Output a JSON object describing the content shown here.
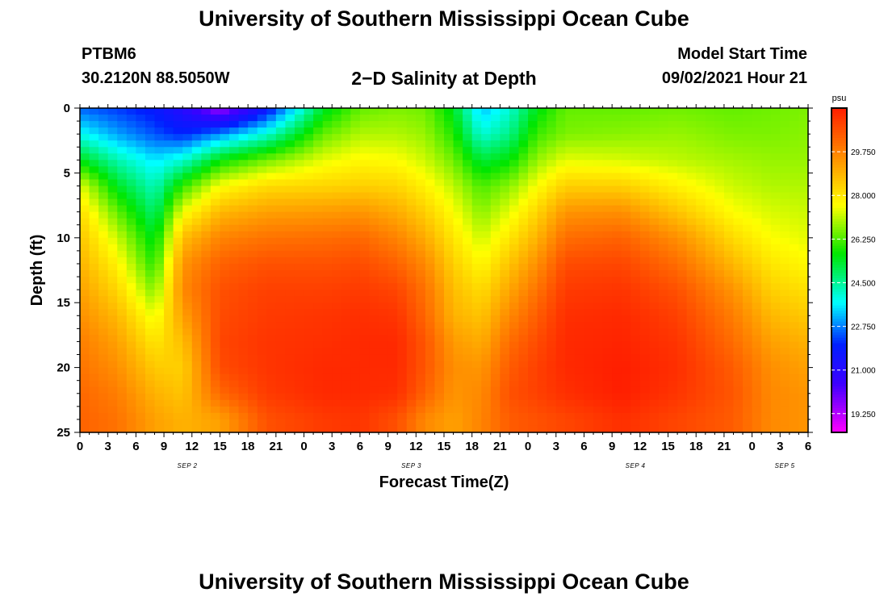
{
  "header": {
    "title": "University of Southern Mississippi Ocean Cube",
    "station": "PTBM6",
    "coords": "30.2120N  88.5050W",
    "plot_title": "2−D Salinity at Depth",
    "model_start_label": "Model Start Time",
    "model_start_value": "09/02/2021 Hour 21"
  },
  "footer": {
    "title": "University of Southern Mississippi Ocean Cube"
  },
  "chart_data": {
    "type": "heatmap",
    "title": "2−D Salinity at Depth",
    "xlabel": "Forecast Time(Z)",
    "ylabel": "Depth (ft)",
    "x_start_hour": 0,
    "x_end_hour": 78,
    "xlim": [
      0,
      78
    ],
    "ylim": [
      0,
      25
    ],
    "x_tick_labels": [
      "0",
      "3",
      "6",
      "9",
      "12",
      "15",
      "18",
      "21",
      "0",
      "3",
      "6",
      "9",
      "12",
      "15",
      "18",
      "21",
      "0",
      "3",
      "6",
      "9",
      "12",
      "15",
      "18",
      "21",
      "0",
      "3",
      "6"
    ],
    "date_labels": [
      {
        "label": "SEP 2",
        "hour": 11.5
      },
      {
        "label": "SEP 3",
        "hour": 35.5
      },
      {
        "label": "SEP 4",
        "hour": 59.5
      },
      {
        "label": "SEP 5",
        "hour": 75.5
      }
    ],
    "y_ticks": [
      0,
      5,
      10,
      15,
      20,
      25
    ],
    "colorbar": {
      "unit": "psu",
      "min": 18.5,
      "max": 31.5,
      "labels": [
        "29.750",
        "28.000",
        "26.250",
        "24.500",
        "22.750",
        "21.000",
        "19.250"
      ]
    },
    "salinity_profile": {
      "description": "columns of salinity (psu) at depths 0,2,4,6,8,10,12,14,16,18,20,22,24 ft",
      "depths": [
        0,
        2,
        4,
        6,
        8,
        10,
        12,
        14,
        16,
        18,
        20,
        22,
        24
      ],
      "columns": [
        {
          "hour": 0,
          "values": [
            22.5,
            23.8,
            25.5,
            27.4,
            28.2,
            28.6,
            28.9,
            29.2,
            29.5,
            29.8,
            30.0,
            30.2,
            30.3
          ]
        },
        {
          "hour": 4,
          "values": [
            22.2,
            23.0,
            24.3,
            25.4,
            26.4,
            27.2,
            27.8,
            28.3,
            28.8,
            29.2,
            29.5,
            29.8,
            30.0
          ]
        },
        {
          "hour": 8,
          "values": [
            21.8,
            22.4,
            23.5,
            24.2,
            24.8,
            25.4,
            25.9,
            26.6,
            27.4,
            28.0,
            28.5,
            28.9,
            29.2
          ]
        },
        {
          "hour": 11,
          "values": [
            21.0,
            22.0,
            24.0,
            26.0,
            27.5,
            28.7,
            29.4,
            29.6,
            29.2,
            28.7,
            28.4,
            28.6,
            28.9
          ]
        },
        {
          "hour": 15,
          "values": [
            19.3,
            22.8,
            25.6,
            27.6,
            28.8,
            29.7,
            30.3,
            30.6,
            30.7,
            30.8,
            30.7,
            30.2,
            29.2
          ]
        },
        {
          "hour": 20,
          "values": [
            21.6,
            24.0,
            26.5,
            28.2,
            29.2,
            30.0,
            30.6,
            30.9,
            31.0,
            31.1,
            31.1,
            31.0,
            30.6
          ]
        },
        {
          "hour": 26,
          "values": [
            25.3,
            26.4,
            27.4,
            28.3,
            29.3,
            30.1,
            30.6,
            30.9,
            31.1,
            31.2,
            31.3,
            31.3,
            31.0
          ]
        },
        {
          "hour": 30,
          "values": [
            26.4,
            27.0,
            27.7,
            28.4,
            29.4,
            30.2,
            30.7,
            31.0,
            31.2,
            31.3,
            31.3,
            31.3,
            31.1
          ]
        },
        {
          "hour": 34,
          "values": [
            26.6,
            27.0,
            27.6,
            28.3,
            29.0,
            29.7,
            30.3,
            30.8,
            31.1,
            31.3,
            31.3,
            31.2,
            30.6
          ]
        },
        {
          "hour": 37,
          "values": [
            26.5,
            26.8,
            27.2,
            27.8,
            28.4,
            29.0,
            29.6,
            30.0,
            30.2,
            30.5,
            30.5,
            30.3,
            29.6
          ]
        },
        {
          "hour": 40,
          "values": [
            25.4,
            25.9,
            26.5,
            27.1,
            27.6,
            28.0,
            28.4,
            28.7,
            28.9,
            29.3,
            29.5,
            29.4,
            29.2
          ]
        },
        {
          "hour": 43,
          "values": [
            23.2,
            24.0,
            25.2,
            26.2,
            26.7,
            27.2,
            27.7,
            28.2,
            28.6,
            29.0,
            29.4,
            29.6,
            29.7
          ]
        },
        {
          "hour": 46,
          "values": [
            24.0,
            24.6,
            25.6,
            26.7,
            27.4,
            28.0,
            28.6,
            29.1,
            29.6,
            30.1,
            30.4,
            30.6,
            30.4
          ]
        },
        {
          "hour": 49,
          "values": [
            25.5,
            26.1,
            26.8,
            27.6,
            28.3,
            28.9,
            29.5,
            30.0,
            30.4,
            30.7,
            30.9,
            30.9,
            30.6
          ]
        },
        {
          "hour": 52,
          "values": [
            26.4,
            26.6,
            27.4,
            28.4,
            29.4,
            30.1,
            30.7,
            31.0,
            31.2,
            31.3,
            31.3,
            31.2,
            30.8
          ]
        },
        {
          "hour": 58,
          "values": [
            26.4,
            26.7,
            27.3,
            28.4,
            29.5,
            30.3,
            30.8,
            31.1,
            31.3,
            31.4,
            31.5,
            31.5,
            31.2
          ]
        },
        {
          "hour": 64,
          "values": [
            26.5,
            26.8,
            27.1,
            27.8,
            28.6,
            29.5,
            30.1,
            30.6,
            30.9,
            31.1,
            31.2,
            31.1,
            30.8
          ]
        },
        {
          "hour": 70,
          "values": [
            26.4,
            26.6,
            26.9,
            27.2,
            27.6,
            28.2,
            28.8,
            29.4,
            29.8,
            30.1,
            30.4,
            30.5,
            30.4
          ]
        },
        {
          "hour": 74,
          "values": [
            26.5,
            26.6,
            26.8,
            27.0,
            27.3,
            27.6,
            28.0,
            28.4,
            28.8,
            29.2,
            29.5,
            29.6,
            29.6
          ]
        },
        {
          "hour": 78,
          "values": [
            26.6,
            26.7,
            26.8,
            27.0,
            27.2,
            27.4,
            27.7,
            28.1,
            28.5,
            28.9,
            29.2,
            29.4,
            29.4
          ]
        }
      ]
    }
  }
}
